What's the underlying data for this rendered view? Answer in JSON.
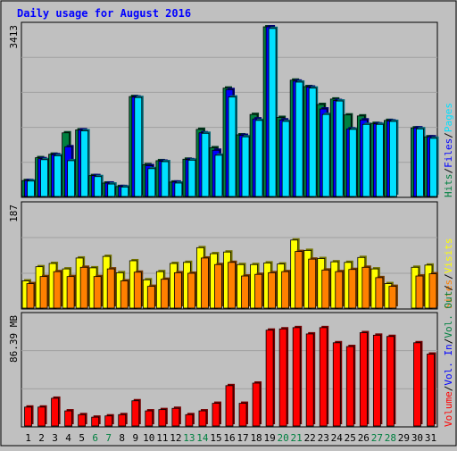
{
  "chart_data": {
    "type": "bar",
    "title": "Daily usage for August 2016",
    "categories": [
      "1",
      "2",
      "3",
      "4",
      "5",
      "6",
      "7",
      "8",
      "9",
      "10",
      "11",
      "12",
      "13",
      "14",
      "15",
      "16",
      "17",
      "18",
      "19",
      "20",
      "21",
      "22",
      "23",
      "24",
      "25",
      "26",
      "27",
      "28",
      "29",
      "30",
      "31"
    ],
    "weekend_days": [
      "6",
      "7",
      "13",
      "14",
      "20",
      "21",
      "27",
      "28"
    ],
    "panels": [
      {
        "id": "hits-files-pages",
        "max_label": "3413",
        "ylim": [
          0,
          3413
        ],
        "series": [
          {
            "name": "Hits",
            "color": "#008040",
            "values": [
              320,
              780,
              850,
              1280,
              1340,
              420,
              270,
              200,
              2010,
              640,
              720,
              290,
              750,
              1350,
              980,
              2180,
              1240,
              1650,
              3413,
              1590,
              2340,
              2210,
              1850,
              1960,
              1640,
              1620,
              1470,
              1530,
              0,
              1380,
              1200
            ]
          },
          {
            "name": "Files",
            "color": "#0000ff",
            "values": [
              320,
              760,
              840,
              1000,
              1340,
              420,
              270,
              200,
              2000,
              620,
              710,
              290,
              740,
              1280,
              930,
              2150,
              1230,
              1560,
              3413,
              1540,
              2320,
              2200,
              1760,
              1930,
              1360,
              1540,
              1460,
              1520,
              0,
              1380,
              1200
            ]
          },
          {
            "name": "Pages",
            "color": "#00e0ff",
            "values": [
              310,
              740,
              820,
              720,
              1320,
              400,
              250,
              190,
              1990,
              560,
              700,
              270,
              730,
              1270,
              830,
              2000,
              1200,
              1530,
              3380,
              1510,
              2300,
              2180,
              1650,
              1920,
              1350,
              1450,
              1450,
              1510,
              0,
              1360,
              1170
            ]
          }
        ]
      },
      {
        "id": "visits-sites",
        "max_label": "187",
        "ylim": [
          0,
          187
        ],
        "series": [
          {
            "name": "Visits",
            "color": "#ffff00",
            "values": [
              50,
              76,
              82,
              72,
              92,
              74,
              95,
              65,
              87,
              52,
              67,
              82,
              84,
              111,
              100,
              103,
              80,
              80,
              83,
              81,
              125,
              106,
              91,
              85,
              84,
              93,
              72,
              45,
              0,
              75,
              79
            ]
          },
          {
            "name": "Sites",
            "color": "#ff8000",
            "values": [
              45,
              58,
              67,
              58,
              75,
              58,
              72,
              50,
              66,
              40,
              53,
              65,
              64,
              92,
              80,
              84,
              59,
              62,
              65,
              67,
              104,
              90,
              70,
              67,
              71,
              75,
              56,
              40,
              0,
              59,
              63
            ]
          }
        ]
      },
      {
        "id": "volume",
        "max_label": "86.39 MB",
        "ylim": [
          0,
          86.39
        ],
        "series": [
          {
            "name": "Volume",
            "color": "#ff0000",
            "values": [
              15,
              15,
              22,
              12,
              9,
              7,
              8,
              9,
              20,
              12,
              13,
              14,
              9,
              12,
              18,
              32,
              18,
              34,
              76,
              77,
              78,
              73,
              78,
              66,
              63,
              74,
              72,
              71,
              0,
              66,
              57
            ]
          }
        ]
      }
    ],
    "legend": [
      "Hits",
      "/",
      "Files",
      "/",
      "Pages",
      "Volume",
      "/",
      "Vol. In",
      "/",
      "Vol. Out",
      "/",
      "Sites",
      "/",
      "Visits"
    ],
    "legend_colors": {
      "Hits": "#008040",
      "Files": "#0000ff",
      "Pages": "#00e0ff",
      "Visits": "#ffff00",
      "Sites": "#ff8000",
      "Volume": "#ff0000",
      "Vol. In": "#0000ff",
      "Vol. Out": "#008040",
      "/": "#000000"
    },
    "colors": {
      "title": "#0000ff",
      "weekday_label": "#000000",
      "weekend_label": "#008040",
      "background": "#c0c0c0",
      "panel": "#c0c0c0",
      "grid": "#a0a0a0"
    }
  }
}
